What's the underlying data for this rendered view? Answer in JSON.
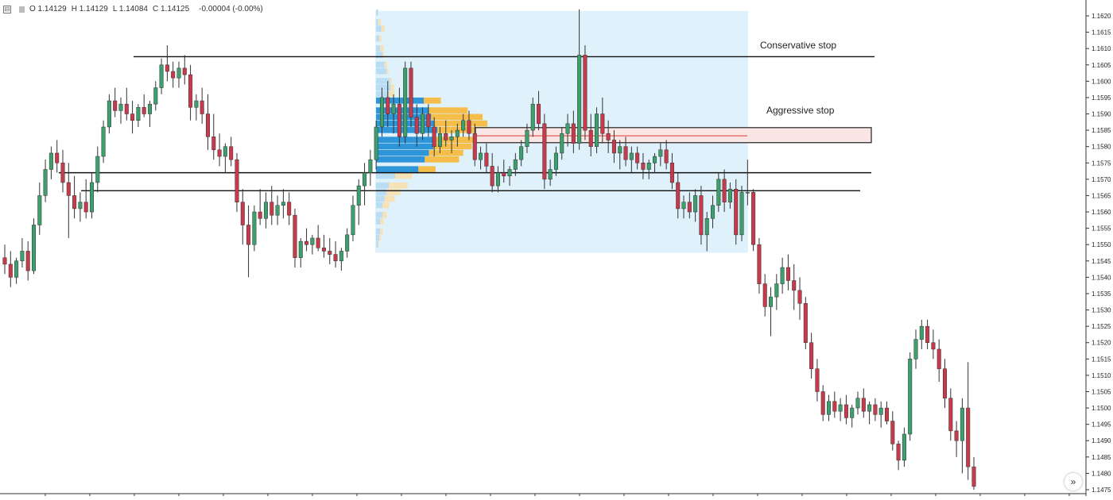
{
  "legend": {
    "open": "O 1.14129",
    "high": "H 1.14129",
    "low": "L 1.14084",
    "close": "C 1.14125",
    "change": "-0.00004 (-0.00%)"
  },
  "annotations": {
    "conservative_stop": "Conservative stop",
    "aggressive_stop": "Aggressive stop"
  },
  "colors": {
    "up_body": "#3c9f6c",
    "down_body": "#c73a4b",
    "wick": "#333333",
    "volume_box": "#dff1fb",
    "vp_blue_strong": "#2f95d9",
    "vp_blue_light": "#b9ddf4",
    "vp_orange_strong": "#f5be4a",
    "vp_orange_light": "#f6e2b6",
    "stop_box_fill": "#fbe6e6",
    "stop_line": "#e35a5a"
  },
  "scroll_button": {
    "icon": "double-chevron-right-icon",
    "glyph": "»"
  },
  "chart_data": {
    "type": "candlestick",
    "instrument_ohlc_shown": {
      "open": 1.14129,
      "high": 1.14129,
      "low": 1.14084,
      "close": 1.14125
    },
    "y_axis": {
      "ylim": [
        1.1474,
        1.1623
      ],
      "ticks": [
        "1.1620",
        "1.1615",
        "1.1610",
        "1.1605",
        "1.1600",
        "1.1595",
        "1.1590",
        "1.1585",
        "1.1580",
        "1.1575",
        "1.1570",
        "1.1565",
        "1.1560",
        "1.1555",
        "1.1550",
        "1.1545",
        "1.1540",
        "1.1535",
        "1.1530",
        "1.1525",
        "1.1520",
        "1.1515",
        "1.1510",
        "1.1505",
        "1.1500",
        "1.1495",
        "1.1490",
        "1.1485",
        "1.1480",
        "1.1475"
      ]
    },
    "grid": false,
    "horizontal_lines": [
      {
        "price": 1.16075,
        "from_bar": 50,
        "to_bar": 390
      },
      {
        "price": 1.1572,
        "from_bar": 22,
        "to_bar": 390
      },
      {
        "price": 1.15665,
        "from_bar": 28,
        "to_bar": 382
      }
    ],
    "stop_zone": {
      "price_top": 1.15858,
      "price_bottom": 1.15812,
      "from_bar": 207,
      "to_bar": 386
    },
    "red_line": {
      "price": 1.15833,
      "from_bar": 207,
      "to_bar": 327
    },
    "volume_profile_range": {
      "price_top": 1.16215,
      "price_bottom": 1.15475,
      "from_bar": 160,
      "to_bar": 327
    },
    "volume_profile": [
      {
        "price": 1.1621,
        "blue": 2,
        "orange": 0
      },
      {
        "price": 1.1618,
        "blue": 2,
        "orange": 3
      },
      {
        "price": 1.1616,
        "blue": 5,
        "orange": 4
      },
      {
        "price": 1.1613,
        "blue": 3,
        "orange": 3
      },
      {
        "price": 1.161,
        "blue": 4,
        "orange": 4
      },
      {
        "price": 1.1608,
        "blue": 6,
        "orange": 2
      },
      {
        "price": 1.1605,
        "blue": 8,
        "orange": 3
      },
      {
        "price": 1.1603,
        "blue": 10,
        "orange": 2
      },
      {
        "price": 1.16,
        "blue": 13,
        "orange": 2
      },
      {
        "price": 1.1598,
        "blue": 14,
        "orange": 4
      },
      {
        "price": 1.1596,
        "blue": 12,
        "orange": 7
      },
      {
        "price": 1.1594,
        "blue": 45,
        "orange": 20
      },
      {
        "price": 1.1591,
        "blue": 50,
        "orange": 45
      },
      {
        "price": 1.1589,
        "blue": 52,
        "orange": 60
      },
      {
        "price": 1.1587,
        "blue": 55,
        "orange": 62
      },
      {
        "price": 1.1585,
        "blue": 58,
        "orange": 62
      },
      {
        "price": 1.1582,
        "blue": 56,
        "orange": 58
      },
      {
        "price": 1.158,
        "blue": 54,
        "orange": 45
      },
      {
        "price": 1.1578,
        "blue": 50,
        "orange": 40
      },
      {
        "price": 1.1576,
        "blue": 46,
        "orange": 40
      },
      {
        "price": 1.1573,
        "blue": 40,
        "orange": 20
      },
      {
        "price": 1.1571,
        "blue": 18,
        "orange": 20
      },
      {
        "price": 1.1568,
        "blue": 12,
        "orange": 22
      },
      {
        "price": 1.1566,
        "blue": 10,
        "orange": 16
      },
      {
        "price": 1.1564,
        "blue": 8,
        "orange": 12
      },
      {
        "price": 1.1562,
        "blue": 6,
        "orange": 8
      },
      {
        "price": 1.1559,
        "blue": 6,
        "orange": 5
      },
      {
        "price": 1.1557,
        "blue": 4,
        "orange": 4
      },
      {
        "price": 1.1554,
        "blue": 4,
        "orange": 3
      },
      {
        "price": 1.1552,
        "blue": 3,
        "orange": 2
      },
      {
        "price": 1.155,
        "blue": 2,
        "orange": 1
      }
    ],
    "bars_per_second_range": null,
    "candles": [
      [
        1.1546,
        1.155,
        1.1541,
        1.1544
      ],
      [
        1.1544,
        1.1548,
        1.1537,
        1.154
      ],
      [
        1.154,
        1.1546,
        1.1538,
        1.1545
      ],
      [
        1.1545,
        1.1552,
        1.1543,
        1.1548
      ],
      [
        1.1548,
        1.1551,
        1.1539,
        1.1542
      ],
      [
        1.1542,
        1.1558,
        1.1541,
        1.1556
      ],
      [
        1.1556,
        1.1569,
        1.1553,
        1.1565
      ],
      [
        1.1565,
        1.1576,
        1.1563,
        1.1573
      ],
      [
        1.1573,
        1.158,
        1.157,
        1.1578
      ],
      [
        1.1578,
        1.1582,
        1.1572,
        1.1575
      ],
      [
        1.1575,
        1.1579,
        1.1566,
        1.1569
      ],
      [
        1.1569,
        1.1575,
        1.1552,
        1.1565
      ],
      [
        1.1565,
        1.1571,
        1.1558,
        1.1561
      ],
      [
        1.1561,
        1.1566,
        1.1557,
        1.1563
      ],
      [
        1.1563,
        1.157,
        1.1558,
        1.156
      ],
      [
        1.156,
        1.1572,
        1.1558,
        1.1569
      ],
      [
        1.1569,
        1.158,
        1.1566,
        1.1577
      ],
      [
        1.1577,
        1.1588,
        1.1575,
        1.1586
      ],
      [
        1.1586,
        1.1596,
        1.1584,
        1.1594
      ],
      [
        1.1594,
        1.1598,
        1.1589,
        1.1591
      ],
      [
        1.1591,
        1.1595,
        1.1587,
        1.1593
      ],
      [
        1.1593,
        1.1598,
        1.1588,
        1.159
      ],
      [
        1.159,
        1.1594,
        1.1584,
        1.1588
      ],
      [
        1.1588,
        1.1593,
        1.1586,
        1.1592
      ],
      [
        1.1592,
        1.1596,
        1.1589,
        1.159
      ],
      [
        1.159,
        1.1594,
        1.1586,
        1.1593
      ],
      [
        1.1593,
        1.16,
        1.1591,
        1.1598
      ],
      [
        1.1598,
        1.1607,
        1.1596,
        1.1605
      ],
      [
        1.1605,
        1.1611,
        1.16,
        1.1603
      ],
      [
        1.1603,
        1.1606,
        1.1598,
        1.1601
      ],
      [
        1.1601,
        1.1606,
        1.1598,
        1.1604
      ],
      [
        1.1604,
        1.1608,
        1.1599,
        1.1602
      ],
      [
        1.1602,
        1.1605,
        1.1588,
        1.1592
      ],
      [
        1.1592,
        1.1596,
        1.1588,
        1.1594
      ],
      [
        1.1594,
        1.1598,
        1.1587,
        1.159
      ],
      [
        1.159,
        1.1596,
        1.1579,
        1.1583
      ],
      [
        1.1583,
        1.159,
        1.1576,
        1.1579
      ],
      [
        1.1579,
        1.1584,
        1.1574,
        1.1577
      ],
      [
        1.1577,
        1.1581,
        1.1572,
        1.158
      ],
      [
        1.158,
        1.1583,
        1.1574,
        1.1576
      ],
      [
        1.1576,
        1.1578,
        1.156,
        1.1563
      ],
      [
        1.1563,
        1.1567,
        1.155,
        1.1556
      ],
      [
        1.1556,
        1.1562,
        1.154,
        1.155
      ],
      [
        1.155,
        1.1562,
        1.1548,
        1.156
      ],
      [
        1.156,
        1.1567,
        1.1556,
        1.1558
      ],
      [
        1.1558,
        1.1566,
        1.1555,
        1.1563
      ],
      [
        1.1563,
        1.1568,
        1.1556,
        1.1559
      ],
      [
        1.1559,
        1.1565,
        1.1556,
        1.1562
      ],
      [
        1.1562,
        1.1567,
        1.1558,
        1.1563
      ],
      [
        1.1563,
        1.1566,
        1.1556,
        1.1559
      ],
      [
        1.1559,
        1.1561,
        1.1543,
        1.1546
      ],
      [
        1.1546,
        1.1552,
        1.1543,
        1.1551
      ],
      [
        1.1551,
        1.1555,
        1.1548,
        1.155
      ],
      [
        1.155,
        1.1553,
        1.1547,
        1.1552
      ],
      [
        1.1552,
        1.1556,
        1.1548,
        1.1549
      ],
      [
        1.1549,
        1.1553,
        1.1546,
        1.1548
      ],
      [
        1.1548,
        1.1552,
        1.1544,
        1.1547
      ],
      [
        1.1547,
        1.1551,
        1.1543,
        1.1545
      ],
      [
        1.1545,
        1.1549,
        1.1542,
        1.1548
      ],
      [
        1.1548,
        1.1555,
        1.1546,
        1.1553
      ],
      [
        1.1553,
        1.1565,
        1.1551,
        1.1562
      ],
      [
        1.1562,
        1.157,
        1.1556,
        1.1568
      ],
      [
        1.1568,
        1.1575,
        1.1562,
        1.1572
      ],
      [
        1.1572,
        1.1579,
        1.1568,
        1.1576
      ],
      [
        1.1576,
        1.1588,
        1.1573,
        1.1586
      ],
      [
        1.1586,
        1.1598,
        1.1583,
        1.1595
      ],
      [
        1.1595,
        1.16,
        1.1586,
        1.159
      ],
      [
        1.159,
        1.1596,
        1.1584,
        1.1593
      ],
      [
        1.1593,
        1.1598,
        1.158,
        1.1583
      ],
      [
        1.1583,
        1.1606,
        1.1581,
        1.1604
      ],
      [
        1.1604,
        1.1606,
        1.1586,
        1.1589
      ],
      [
        1.1589,
        1.1593,
        1.158,
        1.1584
      ],
      [
        1.1584,
        1.1592,
        1.1582,
        1.159
      ],
      [
        1.159,
        1.1593,
        1.1583,
        1.1586
      ],
      [
        1.1586,
        1.1589,
        1.1577,
        1.158
      ],
      [
        1.158,
        1.1586,
        1.1578,
        1.1584
      ],
      [
        1.1584,
        1.1588,
        1.158,
        1.1582
      ],
      [
        1.1582,
        1.1585,
        1.1578,
        1.1583
      ],
      [
        1.1583,
        1.1587,
        1.158,
        1.1585
      ],
      [
        1.1585,
        1.159,
        1.1583,
        1.1588
      ],
      [
        1.1588,
        1.1591,
        1.1582,
        1.1584
      ],
      [
        1.1584,
        1.1587,
        1.1574,
        1.1576
      ],
      [
        1.1576,
        1.158,
        1.1573,
        1.1578
      ],
      [
        1.1578,
        1.1581,
        1.1572,
        1.1574
      ],
      [
        1.1574,
        1.1578,
        1.1566,
        1.1568
      ],
      [
        1.1568,
        1.1574,
        1.1566,
        1.1572
      ],
      [
        1.1572,
        1.1576,
        1.1569,
        1.1571
      ],
      [
        1.1571,
        1.1574,
        1.1568,
        1.1573
      ],
      [
        1.1573,
        1.1578,
        1.1571,
        1.1576
      ],
      [
        1.1576,
        1.1582,
        1.1574,
        1.158
      ],
      [
        1.158,
        1.1587,
        1.1578,
        1.1585
      ],
      [
        1.1585,
        1.1595,
        1.1583,
        1.1593
      ],
      [
        1.1593,
        1.1597,
        1.1585,
        1.1587
      ],
      [
        1.1587,
        1.159,
        1.1567,
        1.157
      ],
      [
        1.157,
        1.1576,
        1.1568,
        1.1573
      ],
      [
        1.1573,
        1.158,
        1.1571,
        1.1578
      ],
      [
        1.1578,
        1.1586,
        1.1576,
        1.1584
      ],
      [
        1.1584,
        1.159,
        1.158,
        1.1587
      ],
      [
        1.1587,
        1.1591,
        1.1578,
        1.1581
      ],
      [
        1.1581,
        1.1622,
        1.1579,
        1.1608
      ],
      [
        1.1608,
        1.1611,
        1.1582,
        1.1585
      ],
      [
        1.1585,
        1.159,
        1.1577,
        1.158
      ],
      [
        1.158,
        1.1592,
        1.1578,
        1.159
      ],
      [
        1.159,
        1.1595,
        1.1581,
        1.1584
      ],
      [
        1.1584,
        1.1588,
        1.1578,
        1.1582
      ],
      [
        1.1582,
        1.1585,
        1.1575,
        1.1578
      ],
      [
        1.1578,
        1.1582,
        1.1573,
        1.158
      ],
      [
        1.158,
        1.1583,
        1.1574,
        1.1576
      ],
      [
        1.1576,
        1.158,
        1.1572,
        1.1578
      ],
      [
        1.1578,
        1.158,
        1.1573,
        1.1575
      ],
      [
        1.1575,
        1.1578,
        1.157,
        1.1573
      ],
      [
        1.1573,
        1.1576,
        1.157,
        1.1575
      ],
      [
        1.1575,
        1.1578,
        1.1572,
        1.1577
      ],
      [
        1.1577,
        1.1581,
        1.1574,
        1.1579
      ],
      [
        1.1579,
        1.1582,
        1.1573,
        1.1575
      ],
      [
        1.1575,
        1.1578,
        1.1567,
        1.1569
      ],
      [
        1.1569,
        1.1572,
        1.1558,
        1.1561
      ],
      [
        1.1561,
        1.1565,
        1.1558,
        1.1563
      ],
      [
        1.1563,
        1.1566,
        1.1558,
        1.156
      ],
      [
        1.156,
        1.1567,
        1.1557,
        1.1565
      ],
      [
        1.1565,
        1.1568,
        1.155,
        1.1553
      ],
      [
        1.1553,
        1.156,
        1.1548,
        1.1558
      ],
      [
        1.1558,
        1.1565,
        1.1555,
        1.1562
      ],
      [
        1.1562,
        1.1572,
        1.156,
        1.157
      ],
      [
        1.157,
        1.1573,
        1.156,
        1.1563
      ],
      [
        1.1563,
        1.1569,
        1.1561,
        1.1567
      ],
      [
        1.1567,
        1.157,
        1.155,
        1.1553
      ],
      [
        1.1553,
        1.1568,
        1.1551,
        1.1566
      ],
      [
        1.1566,
        1.1576,
        1.1562,
        1.1566
      ],
      [
        1.1566,
        1.1567,
        1.1548,
        1.155
      ],
      [
        1.155,
        1.1552,
        1.1535,
        1.1538
      ],
      [
        1.1538,
        1.1541,
        1.1528,
        1.1531
      ],
      [
        1.1531,
        1.1537,
        1.1522,
        1.1534
      ],
      [
        1.1534,
        1.1541,
        1.153,
        1.1538
      ],
      [
        1.1538,
        1.1546,
        1.1535,
        1.1543
      ],
      [
        1.1543,
        1.1547,
        1.1536,
        1.1539
      ],
      [
        1.1539,
        1.1544,
        1.153,
        1.1536
      ],
      [
        1.1536,
        1.154,
        1.1527,
        1.1532
      ],
      [
        1.1532,
        1.1534,
        1.1518,
        1.152
      ],
      [
        1.152,
        1.1523,
        1.1509,
        1.1512
      ],
      [
        1.1512,
        1.1515,
        1.1502,
        1.1505
      ],
      [
        1.1505,
        1.1507,
        1.1496,
        1.1498
      ],
      [
        1.1498,
        1.1504,
        1.1496,
        1.1502
      ],
      [
        1.1502,
        1.1505,
        1.1497,
        1.1499
      ],
      [
        1.1499,
        1.1503,
        1.1496,
        1.1501
      ],
      [
        1.1501,
        1.1504,
        1.1495,
        1.1497
      ],
      [
        1.1497,
        1.1501,
        1.1494,
        1.15
      ],
      [
        1.15,
        1.1505,
        1.1498,
        1.1503
      ],
      [
        1.1503,
        1.1506,
        1.1497,
        1.1499
      ],
      [
        1.1499,
        1.1502,
        1.1495,
        1.1501
      ],
      [
        1.1501,
        1.1503,
        1.1496,
        1.1498
      ],
      [
        1.1498,
        1.1502,
        1.1494,
        1.15
      ],
      [
        1.15,
        1.1502,
        1.1495,
        1.1496
      ],
      [
        1.1496,
        1.1499,
        1.1487,
        1.1489
      ],
      [
        1.1489,
        1.149,
        1.1481,
        1.1484
      ],
      [
        1.1484,
        1.1494,
        1.1482,
        1.1492
      ],
      [
        1.1492,
        1.1517,
        1.149,
        1.1515
      ],
      [
        1.1515,
        1.1524,
        1.1512,
        1.1521
      ],
      [
        1.1521,
        1.1527,
        1.1518,
        1.1525
      ],
      [
        1.1525,
        1.1527,
        1.1518,
        1.152
      ],
      [
        1.152,
        1.1524,
        1.1515,
        1.1518
      ],
      [
        1.1518,
        1.1521,
        1.1508,
        1.1512
      ],
      [
        1.1512,
        1.1515,
        1.15,
        1.1503
      ],
      [
        1.1503,
        1.1506,
        1.149,
        1.1493
      ],
      [
        1.1493,
        1.1496,
        1.1485,
        1.149
      ],
      [
        1.149,
        1.1503,
        1.148,
        1.15
      ],
      [
        1.15,
        1.1514,
        1.1478,
        1.1482
      ],
      [
        1.1482,
        1.1485,
        1.1475,
        1.1476
      ]
    ]
  }
}
